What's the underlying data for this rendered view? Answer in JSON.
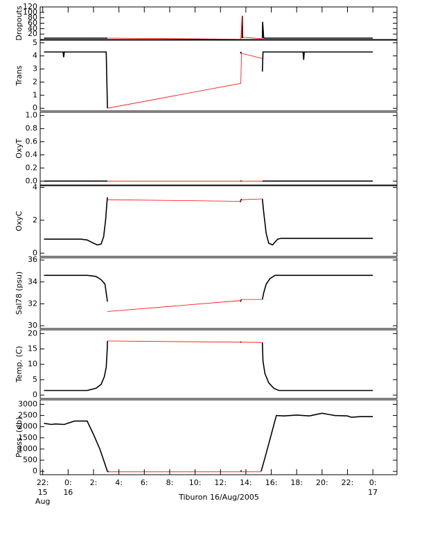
{
  "x_axis": {
    "xlim": [
      -2.2,
      25.9
    ],
    "xticks": [
      {
        "value": -2,
        "label": "22:"
      },
      {
        "value": 0,
        "label": "0:"
      },
      {
        "value": 2,
        "label": "2:"
      },
      {
        "value": 4,
        "label": "4:"
      },
      {
        "value": 6,
        "label": "6:"
      },
      {
        "value": 8,
        "label": "8:"
      },
      {
        "value": 10,
        "label": "10:"
      },
      {
        "value": 12,
        "label": "12:"
      },
      {
        "value": 14,
        "label": "14:"
      },
      {
        "value": 16,
        "label": "16:"
      },
      {
        "value": 18,
        "label": "18:"
      },
      {
        "value": 20,
        "label": "20:"
      },
      {
        "value": 22,
        "label": "22:"
      },
      {
        "value": 24,
        "label": "0:"
      }
    ],
    "x_date_labels": [
      {
        "value": -2,
        "lines": [
          "15",
          "Aug"
        ]
      },
      {
        "value": 0,
        "lines": [
          "16"
        ]
      },
      {
        "value": 24,
        "lines": [
          "17"
        ]
      }
    ],
    "xlabel": "Tiburon 16/Aug/2005"
  },
  "chart_data": [
    {
      "type": "line",
      "ylabel": "Dropouts",
      "ylim": [
        0,
        120
      ],
      "yticks": [
        20,
        40,
        60,
        80,
        100,
        120
      ],
      "series": [
        {
          "color": "#000000",
          "x": [
            -1.9,
            3.1,
            13.5,
            13.7,
            13.72,
            13.75,
            15.2,
            15.3,
            15.32,
            15.4,
            24
          ],
          "values": [
            5,
            5,
            null,
            5,
            87,
            5,
            null,
            5,
            65,
            5,
            5
          ]
        },
        {
          "color": "#ff0000",
          "x": [
            3.1,
            13.6,
            13.7,
            13.75,
            15.3
          ],
          "values": [
            5,
            1,
            87,
            8,
            3
          ]
        }
      ]
    },
    {
      "type": "line",
      "ylabel": "Trans",
      "ylim": [
        -0.2,
        5.2
      ],
      "yticks": [
        0,
        1,
        2,
        3,
        4,
        5
      ],
      "series": [
        {
          "color": "#000000",
          "x": [
            -1.9,
            -0.4,
            -0.35,
            -0.3,
            3.0,
            3.1,
            13.5,
            13.55,
            13.65,
            15.2,
            15.3,
            15.35,
            15.4,
            18.5,
            18.55,
            18.6,
            24
          ],
          "values": [
            4.3,
            4.3,
            3.9,
            4.3,
            4.3,
            0.0,
            null,
            4.2,
            4.3,
            null,
            2.8,
            4.3,
            4.3,
            4.3,
            3.7,
            4.3,
            4.3
          ]
        },
        {
          "color": "#ff0000",
          "x": [
            3.1,
            13.6,
            13.65,
            15.3
          ],
          "values": [
            0.0,
            1.9,
            4.2,
            3.8
          ]
        }
      ]
    },
    {
      "type": "line",
      "ylabel": "OxyT",
      "ylim": [
        -0.06,
        1.05
      ],
      "yticks": [
        {
          "value": 0,
          "label": "0.0"
        },
        0.2,
        0.4,
        0.6,
        0.8,
        {
          "value": 1,
          "label": "1.0"
        }
      ],
      "series": [
        {
          "color": "#000000",
          "x": [
            -1.9,
            3.1,
            13.5,
            13.55,
            13.7,
            15.2,
            15.3,
            24
          ],
          "values": [
            0,
            0,
            null,
            0,
            0,
            null,
            0,
            0
          ]
        },
        {
          "color": "#ff0000",
          "x": [
            3.1,
            15.3
          ],
          "values": [
            0,
            0
          ]
        }
      ]
    },
    {
      "type": "line",
      "ylabel": "OxyC",
      "ylim": [
        -0.2,
        4.1
      ],
      "yticks": [
        0,
        2,
        4
      ],
      "series": [
        {
          "color": "#000000",
          "x": [
            -1.9,
            1,
            1.5,
            2,
            2.3,
            2.6,
            2.8,
            2.95,
            3.05,
            3.1,
            13.5,
            13.55,
            13.65,
            15.2,
            15.3,
            15.4,
            15.6,
            15.8,
            16.1,
            16.5,
            16.8,
            24
          ],
          "values": [
            0.85,
            0.85,
            0.8,
            0.6,
            0.5,
            0.55,
            1.0,
            2.0,
            3.0,
            3.4,
            null,
            3.1,
            3.3,
            null,
            3.3,
            2.5,
            1.2,
            0.6,
            0.5,
            0.85,
            0.9,
            0.9
          ]
        },
        {
          "color": "#ff0000",
          "x": [
            3.1,
            13.6,
            13.65,
            15.3
          ],
          "values": [
            3.25,
            3.15,
            3.25,
            3.3
          ]
        }
      ]
    },
    {
      "type": "line",
      "ylabel": "Sal78 (psu)",
      "ylim": [
        29.75,
        36.2
      ],
      "yticks": [
        30,
        32,
        34,
        36
      ],
      "series": [
        {
          "color": "#000000",
          "x": [
            -1.9,
            1.5,
            2.2,
            2.6,
            2.9,
            3.0,
            3.1,
            13.5,
            13.55,
            13.65,
            15.2,
            15.3,
            15.4,
            15.6,
            15.9,
            16.3,
            24
          ],
          "values": [
            34.6,
            34.6,
            34.5,
            34.2,
            33.8,
            33,
            32.2,
            null,
            32.2,
            32.4,
            null,
            32.4,
            33,
            33.8,
            34.3,
            34.6,
            34.6
          ]
        },
        {
          "color": "#ff0000",
          "x": [
            3.1,
            13.6,
            13.65,
            15.3
          ],
          "values": [
            31.3,
            32.3,
            32.4,
            32.4
          ]
        }
      ]
    },
    {
      "type": "line",
      "ylabel": "Temp. (C)",
      "ylim": [
        -1.1,
        21.2
      ],
      "yticks": [
        0,
        5,
        10,
        15,
        20
      ],
      "series": [
        {
          "color": "#000000",
          "x": [
            -1.9,
            1.5,
            2.2,
            2.6,
            2.85,
            3.0,
            3.08,
            3.1,
            13.5,
            13.55,
            13.65,
            15.2,
            15.3,
            15.35,
            15.5,
            15.8,
            16.2,
            16.6,
            24
          ],
          "values": [
            1.5,
            1.5,
            2.2,
            3.5,
            6,
            9,
            15,
            17.6,
            null,
            17.2,
            17.3,
            null,
            17.1,
            11,
            7,
            4,
            2.2,
            1.5,
            1.5
          ]
        },
        {
          "color": "#ff0000",
          "x": [
            3.1,
            13.6,
            15.3
          ],
          "values": [
            17.6,
            17.2,
            17.1
          ]
        }
      ]
    },
    {
      "type": "line",
      "ylabel": "Press. (db)",
      "ylim": [
        -150,
        3200
      ],
      "yticks": [
        0,
        500,
        1000,
        1500,
        2000,
        2500,
        3000
      ],
      "series": [
        {
          "color": "#000000",
          "x": [
            -1.9,
            -1.3,
            -1,
            -0.3,
            0.5,
            1.5,
            2.0,
            2.5,
            3.1,
            3.2,
            13.5,
            13.6,
            13.65,
            15.1,
            15.2,
            15.5,
            16.4,
            17,
            18,
            19,
            20,
            20.5,
            21,
            22,
            22.3,
            23,
            24
          ],
          "values": [
            2150,
            2100,
            2120,
            2100,
            2250,
            2250,
            1650,
            1000,
            0,
            -20,
            null,
            -20,
            50,
            null,
            0,
            600,
            2500,
            2480,
            2520,
            2480,
            2600,
            2550,
            2500,
            2480,
            2420,
            2450,
            2450
          ]
        },
        {
          "color": "#ff0000",
          "x": [
            3.1,
            15.2
          ],
          "values": [
            -20,
            -20
          ]
        }
      ]
    }
  ]
}
